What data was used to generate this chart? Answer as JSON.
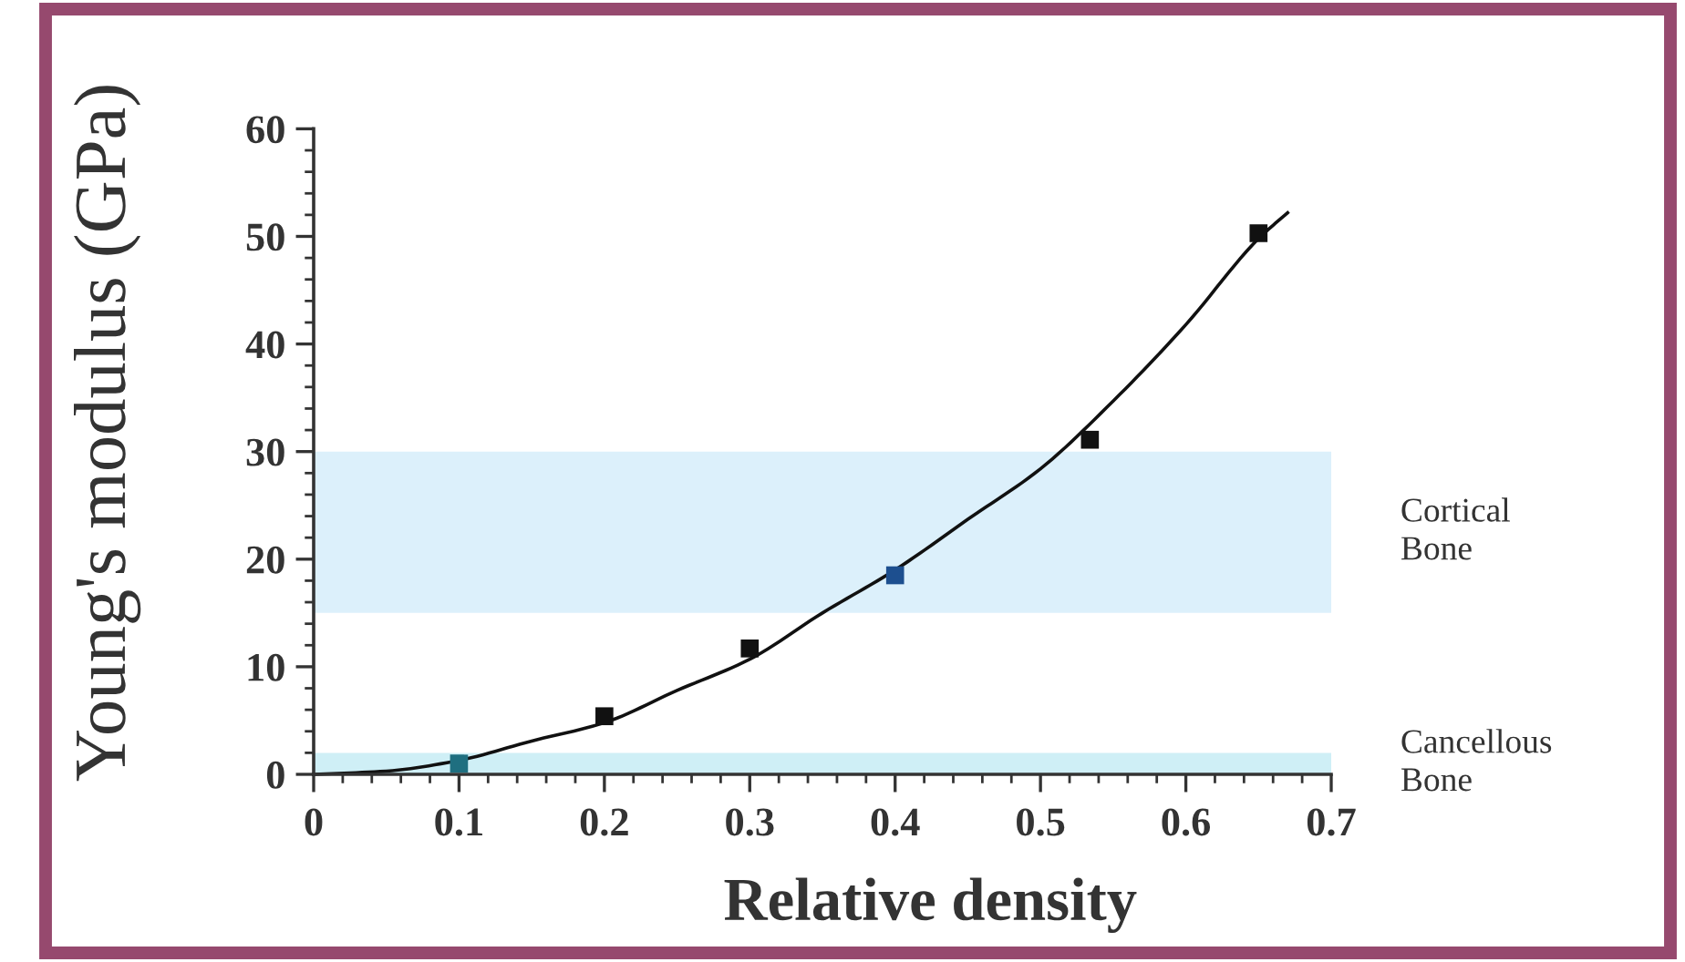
{
  "chart_data": {
    "type": "scatter",
    "xlabel": "Relative density",
    "ylabel": "Young's modulus (GPa)",
    "xlim": [
      0,
      0.7
    ],
    "ylim": [
      0,
      60
    ],
    "xticks": [
      0,
      0.1,
      0.2,
      0.3,
      0.4,
      0.5,
      0.6,
      0.7
    ],
    "yticks": [
      0,
      10,
      20,
      30,
      40,
      50,
      60
    ],
    "marker": "square",
    "series": [
      {
        "x": [
          0.1,
          0.2,
          0.3,
          0.4,
          0.534,
          0.65
        ],
        "values": [
          1.0,
          5.4,
          11.7,
          18.5,
          31.1,
          50.3
        ],
        "colors": [
          "#1f6f80",
          "#111111",
          "#111111",
          "#1d4f8f",
          "#111111",
          "#111111"
        ]
      },
      {
        "type": "line",
        "x": [
          0,
          0.05,
          0.1,
          0.15,
          0.2,
          0.25,
          0.3,
          0.35,
          0.4,
          0.45,
          0.5,
          0.55,
          0.6,
          0.65,
          0.67
        ],
        "values": [
          0,
          0.3,
          1.3,
          3.1,
          4.8,
          7.8,
          10.7,
          15.0,
          19.0,
          23.7,
          28.4,
          34.7,
          41.8,
          49.8,
          52.2
        ],
        "color": "#111111",
        "marker": "none",
        "line_style": "solid"
      }
    ],
    "bands": [
      {
        "axis": "y",
        "from": 15,
        "to": 30,
        "label": "Cortical Bone",
        "color": "#dcf0fb"
      },
      {
        "axis": "y",
        "from": 0,
        "to": 2,
        "label": "Cancellous Bone",
        "color": "#cfeff6"
      }
    ]
  }
}
